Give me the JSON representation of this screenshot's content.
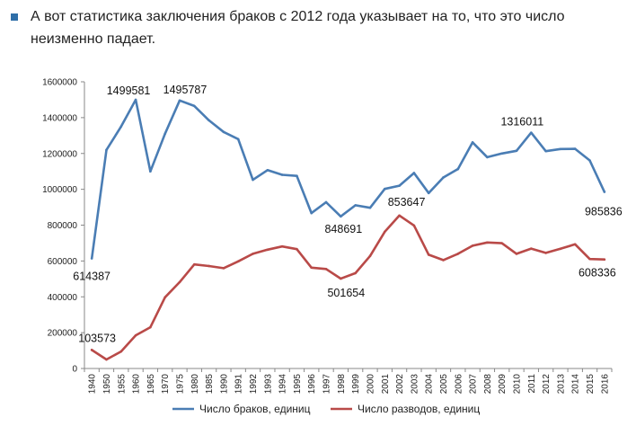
{
  "intro": {
    "text": "А вот статистика заключения браков с 2012 года указывает на то, что это число неизменно падает."
  },
  "colors": {
    "bullet": "#2f6fa8",
    "marriages": "#4a7db4",
    "divorces": "#b94a48",
    "axis": "#888888",
    "grid": "#bfbfbf"
  },
  "chart_data": {
    "type": "line",
    "title": "",
    "xlabel": "",
    "ylabel": "",
    "ylim": [
      0,
      1600000
    ],
    "yticks": [
      "0",
      "200000",
      "400000",
      "600000",
      "800000",
      "1000000",
      "1200000",
      "1400000",
      "1600000"
    ],
    "yticks_values": [
      0,
      200000,
      400000,
      600000,
      800000,
      1000000,
      1200000,
      1400000,
      1600000
    ],
    "grid": false,
    "legend": "bottom",
    "categories": [
      "1940",
      "1950",
      "1955",
      "1960",
      "1965",
      "1970",
      "1975",
      "1980",
      "1985",
      "1990",
      "1991",
      "1992",
      "1993",
      "1994",
      "1995",
      "1996",
      "1997",
      "1998",
      "1999",
      "2000",
      "2001",
      "2002",
      "2003",
      "2004",
      "2005",
      "2006",
      "2007",
      "2008",
      "2009",
      "2010",
      "2011",
      "2012",
      "2013",
      "2014",
      "2015",
      "2016"
    ],
    "series": [
      {
        "name": "Число браков, единиц",
        "color": "#4a7db4",
        "values": [
          614387,
          1220000,
          1350000,
          1499581,
          1100000,
          1310000,
          1495787,
          1465000,
          1385000,
          1320000,
          1280000,
          1053000,
          1107000,
          1081000,
          1075000,
          867000,
          928000,
          848691,
          911000,
          897000,
          1002000,
          1020000,
          1091000,
          979000,
          1066000,
          1113000,
          1262000,
          1179000,
          1200000,
          1215000,
          1316011,
          1213000,
          1225000,
          1226000,
          1161000,
          985836
        ]
      },
      {
        "name": "Число разводов, единиц",
        "color": "#b94a48",
        "values": [
          103573,
          50000,
          95000,
          185000,
          230000,
          397000,
          482000,
          581000,
          572000,
          560000,
          598000,
          640000,
          663000,
          681000,
          666000,
          563000,
          555000,
          501654,
          532000,
          628000,
          763000,
          853647,
          798000,
          635000,
          605000,
          640000,
          685000,
          703000,
          699000,
          640000,
          669000,
          645000,
          668000,
          693000,
          611000,
          608336
        ]
      }
    ],
    "annotations": [
      {
        "text": "614387",
        "series": 0,
        "index": 0
      },
      {
        "text": "1499581",
        "series": 0,
        "index": 3
      },
      {
        "text": "1495787",
        "series": 0,
        "index": 6
      },
      {
        "text": "848691",
        "series": 0,
        "index": 17
      },
      {
        "text": "1316011",
        "series": 0,
        "index": 30
      },
      {
        "text": "985836",
        "series": 0,
        "index": 35
      },
      {
        "text": "103573",
        "series": 1,
        "index": 0
      },
      {
        "text": "501654",
        "series": 1,
        "index": 17
      },
      {
        "text": "853647",
        "series": 1,
        "index": 21
      },
      {
        "text": "608336",
        "series": 1,
        "index": 35
      }
    ]
  }
}
